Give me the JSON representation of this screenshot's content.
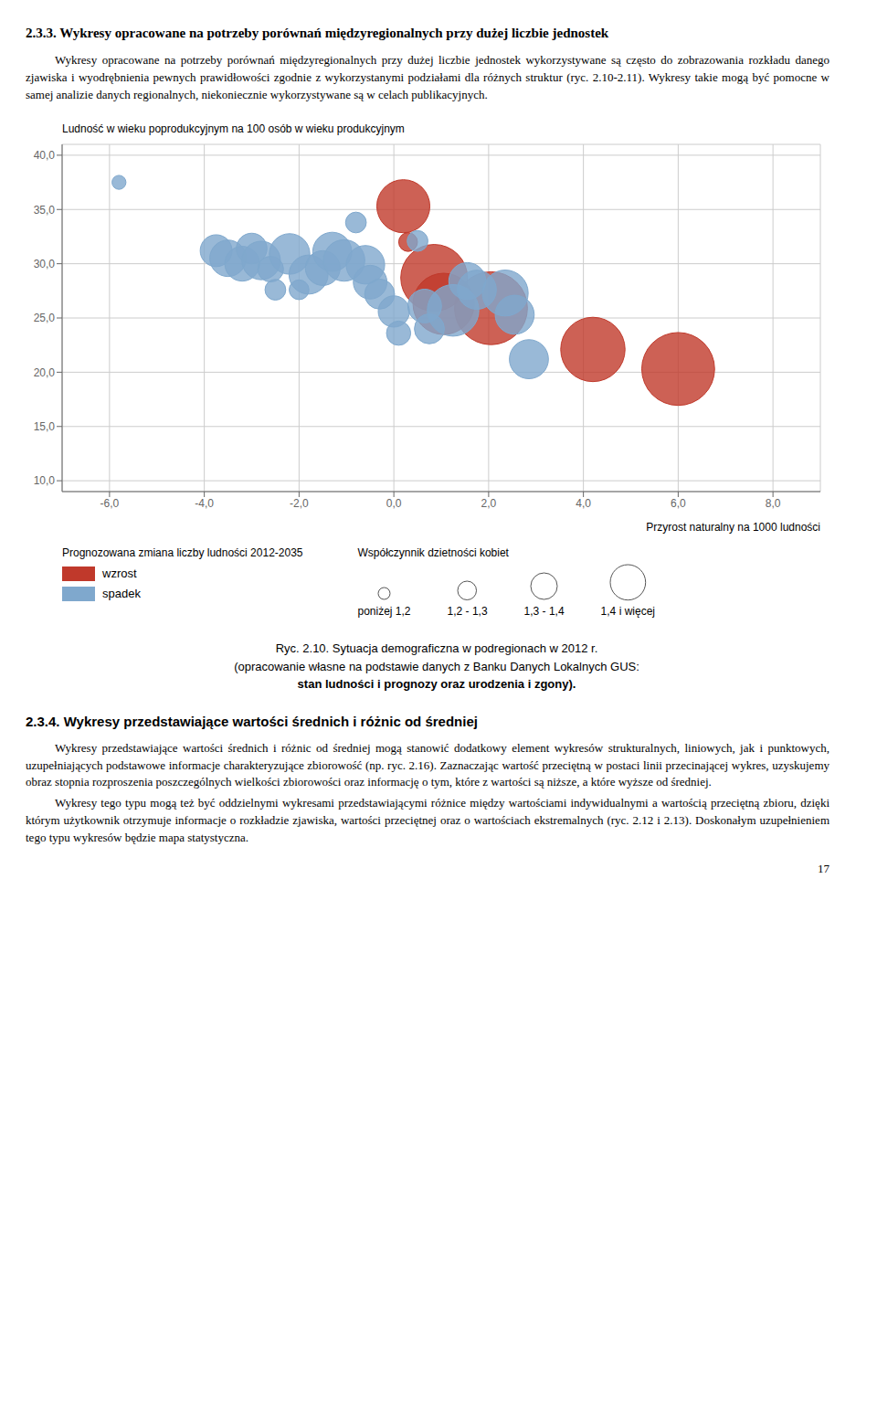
{
  "chart_data": {
    "type": "bubble",
    "ylabel": "Ludność w wieku poprodukcyjnym na 100 osób w wieku produkcyjnym",
    "xlabel": "Przyrost naturalny na 1000 ludności",
    "legend_title": "Prognozowana zmiana liczby ludności 2012-2035",
    "size_legend": {
      "title": "Współczynnik dzietności kobiet",
      "labels": [
        "poniżej 1,2",
        "1,2 - 1,3",
        "1,3 - 1,4",
        "1,4 i więcej"
      ],
      "sizes": [
        18,
        45,
        90,
        160
      ]
    },
    "xlim": [
      -7.0,
      9.0
    ],
    "ylim": [
      9.0,
      41.0
    ],
    "xticks": [
      {
        "value": -6,
        "label": "-6,0"
      },
      {
        "value": -4,
        "label": "-4,0"
      },
      {
        "value": -2,
        "label": "-2,0"
      },
      {
        "value": 0,
        "label": "0,0"
      },
      {
        "value": 2,
        "label": "2,0"
      },
      {
        "value": 4,
        "label": "4,0"
      },
      {
        "value": 6,
        "label": "6,0"
      },
      {
        "value": 8,
        "label": "8,0"
      }
    ],
    "yticks": [
      {
        "value": 10,
        "label": "10,0"
      },
      {
        "value": 15,
        "label": "15,0"
      },
      {
        "value": 20,
        "label": "20,0"
      },
      {
        "value": 25,
        "label": "25,0"
      },
      {
        "value": 30,
        "label": "30,0"
      },
      {
        "value": 35,
        "label": "35,0"
      },
      {
        "value": 40,
        "label": "40,0"
      }
    ],
    "grid": true,
    "series": [
      {
        "name": "wzrost",
        "color": "#c0392b",
        "x": [
          0.2,
          0.3,
          0.85,
          1.05,
          2.05,
          4.2,
          6.0
        ],
        "y": [
          35.3,
          32.0,
          28.7,
          26.3,
          25.9,
          22.1,
          20.3
        ],
        "sizes": [
          360,
          45,
          570,
          480,
          680,
          530,
          680
        ]
      },
      {
        "name": "spadek",
        "color": "#7fa8cd",
        "x": [
          -5.8,
          -3.75,
          -3.5,
          -3.2,
          -3.0,
          -2.8,
          -2.6,
          -2.5,
          -2.2,
          -2.0,
          -1.8,
          -1.5,
          -1.3,
          -1.05,
          -0.8,
          -0.6,
          -0.5,
          -0.3,
          0.0,
          0.1,
          0.5,
          0.65,
          0.75,
          1.25,
          1.55,
          1.75,
          2.35,
          2.55,
          2.85
        ],
        "y": [
          37.5,
          31.2,
          30.5,
          30.0,
          31.4,
          30.3,
          29.5,
          27.6,
          30.9,
          27.6,
          29.0,
          29.6,
          31.1,
          30.3,
          33.8,
          29.9,
          28.3,
          27.2,
          25.6,
          23.6,
          32.1,
          26.1,
          24.0,
          25.7,
          28.4,
          27.6,
          27.3,
          25.3,
          21.2
        ],
        "sizes": [
          25,
          130,
          170,
          155,
          120,
          190,
          85,
          55,
          210,
          50,
          195,
          155,
          195,
          220,
          55,
          190,
          145,
          115,
          125,
          75,
          55,
          145,
          115,
          340,
          175,
          195,
          270,
          195,
          195
        ]
      }
    ],
    "annotations": [
      "2.3.3. Wykresy opracowane na potrzeby porównań międzyregionalnych przy dużej liczbie jednostek",
      "Wykresy opracowane na potrzeby porównań międzyregionalnych przy dużej liczbie jednostek wykorzystywane są często do zobrazowania rozkładu danego zjawiska i wyodrębnienia pewnych prawidłowości zgodnie z wykorzystanymi podziałami dla różnych struktur (ryc. 2.10-2.11). Wykresy takie mogą być pomocne w samej analizie danych regionalnych, niekoniecznie wykorzystywane są w celach publikacyjnych.",
      "Ryc. 2.10. Sytuacja demograficzna w podregionach w 2012 r.",
      "(opracowanie własne na podstawie danych z Banku Danych Lokalnych GUS:",
      "stan ludności i prognozy oraz urodzenia i zgony).",
      "2.3.4. Wykresy przedstawiające wartości średnich i różnic od średniej",
      "Wykresy przedstawiające wartości średnich i różnic od średniej mogą stanowić dodatkowy element wykresów strukturalnych, liniowych, jak i punktowych, uzupełniających podstawowe informacje charakteryzujące zbiorowość (np. ryc. 2.16). Zaznaczając wartość przeciętną w postaci linii przecinającej wykres, uzyskujemy obraz stopnia rozproszenia poszczególnych wielkości zbiorowości oraz informację o tym, które z wartości są niższe, a które wyższe od średniej.",
      "Wykresy tego typu mogą też być oddzielnymi wykresami przedstawiającymi różnice między wartościami indywidualnymi a wartością przeciętną zbioru, dzięki którym użytkownik otrzymuje informacje o rozkładzie zjawiska, wartości przeciętnej oraz o wartościach ekstremalnych (ryc. 2.12 i 2.13). Doskonałym uzupełnieniem tego typu wykresów będzie mapa statystyczna.",
      "17"
    ]
  }
}
